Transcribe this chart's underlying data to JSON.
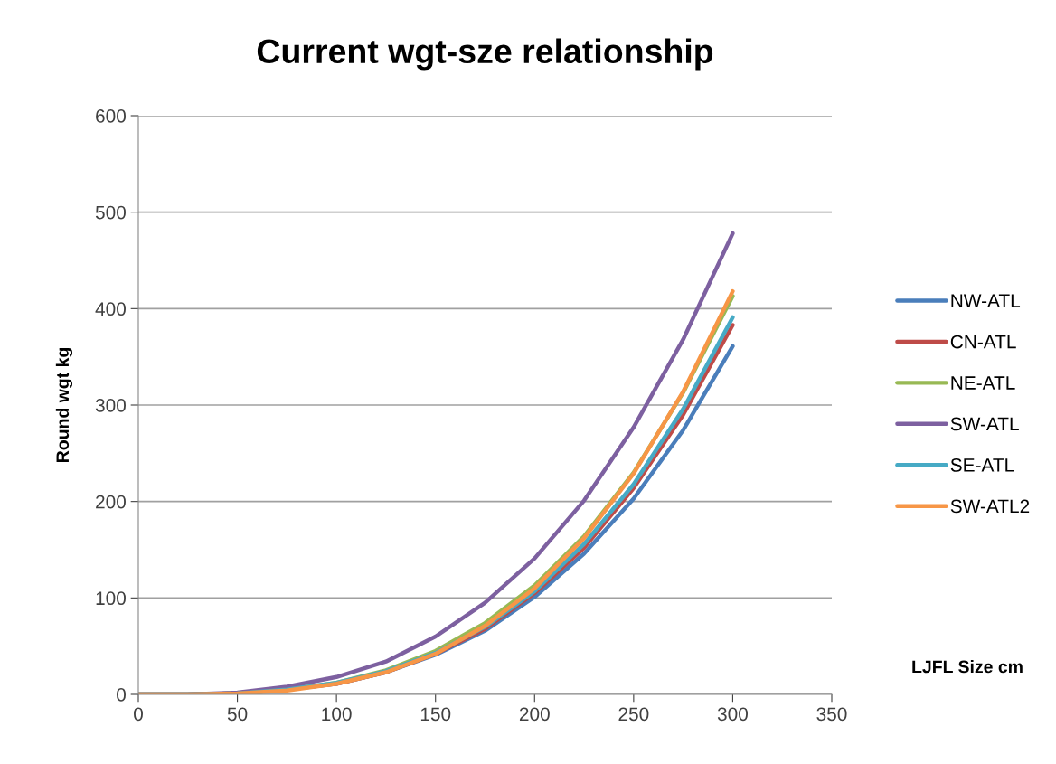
{
  "chart_data": {
    "type": "line",
    "title": "Current wgt-sze relationship",
    "xlabel": "LJFL Size cm",
    "ylabel": "Round wgt kg",
    "x": [
      0,
      25,
      50,
      75,
      100,
      125,
      150,
      175,
      200,
      225,
      250,
      275,
      300
    ],
    "xlim": [
      0,
      350
    ],
    "xticks": [
      0,
      50,
      100,
      150,
      200,
      250,
      300,
      350
    ],
    "ylim": [
      0,
      600
    ],
    "yticks": [
      0,
      100,
      200,
      300,
      400,
      500,
      600
    ],
    "grid": "y",
    "legend": "right",
    "marker": "none",
    "line_style": "solid",
    "series": [
      {
        "name": "NW-ATL",
        "color": "#4a7ebb",
        "values": [
          0,
          0,
          1,
          5,
          11,
          23,
          41,
          66,
          101,
          146,
          203,
          274,
          361
        ]
      },
      {
        "name": "CN-ATL",
        "color": "#be4b48",
        "values": [
          0,
          0,
          1,
          5,
          11,
          23,
          42,
          68,
          105,
          152,
          214,
          290,
          383
        ]
      },
      {
        "name": "NE-ATL",
        "color": "#98b954",
        "values": [
          0,
          0,
          1,
          5,
          12,
          25,
          45,
          74,
          113,
          164,
          230,
          313,
          413
        ]
      },
      {
        "name": "SW-ATL",
        "color": "#7d60a0",
        "values": [
          0,
          0,
          2,
          8,
          18,
          34,
          60,
          95,
          141,
          201,
          277,
          368,
          478
        ]
      },
      {
        "name": "SE-ATL",
        "color": "#46aac5",
        "values": [
          0,
          0,
          1,
          5,
          12,
          24,
          43,
          70,
          107,
          156,
          218,
          296,
          391
        ]
      },
      {
        "name": "SW-ATL2",
        "color": "#f79646",
        "values": [
          0,
          0,
          1,
          4,
          11,
          23,
          42,
          71,
          110,
          162,
          229,
          314,
          418
        ]
      }
    ]
  }
}
